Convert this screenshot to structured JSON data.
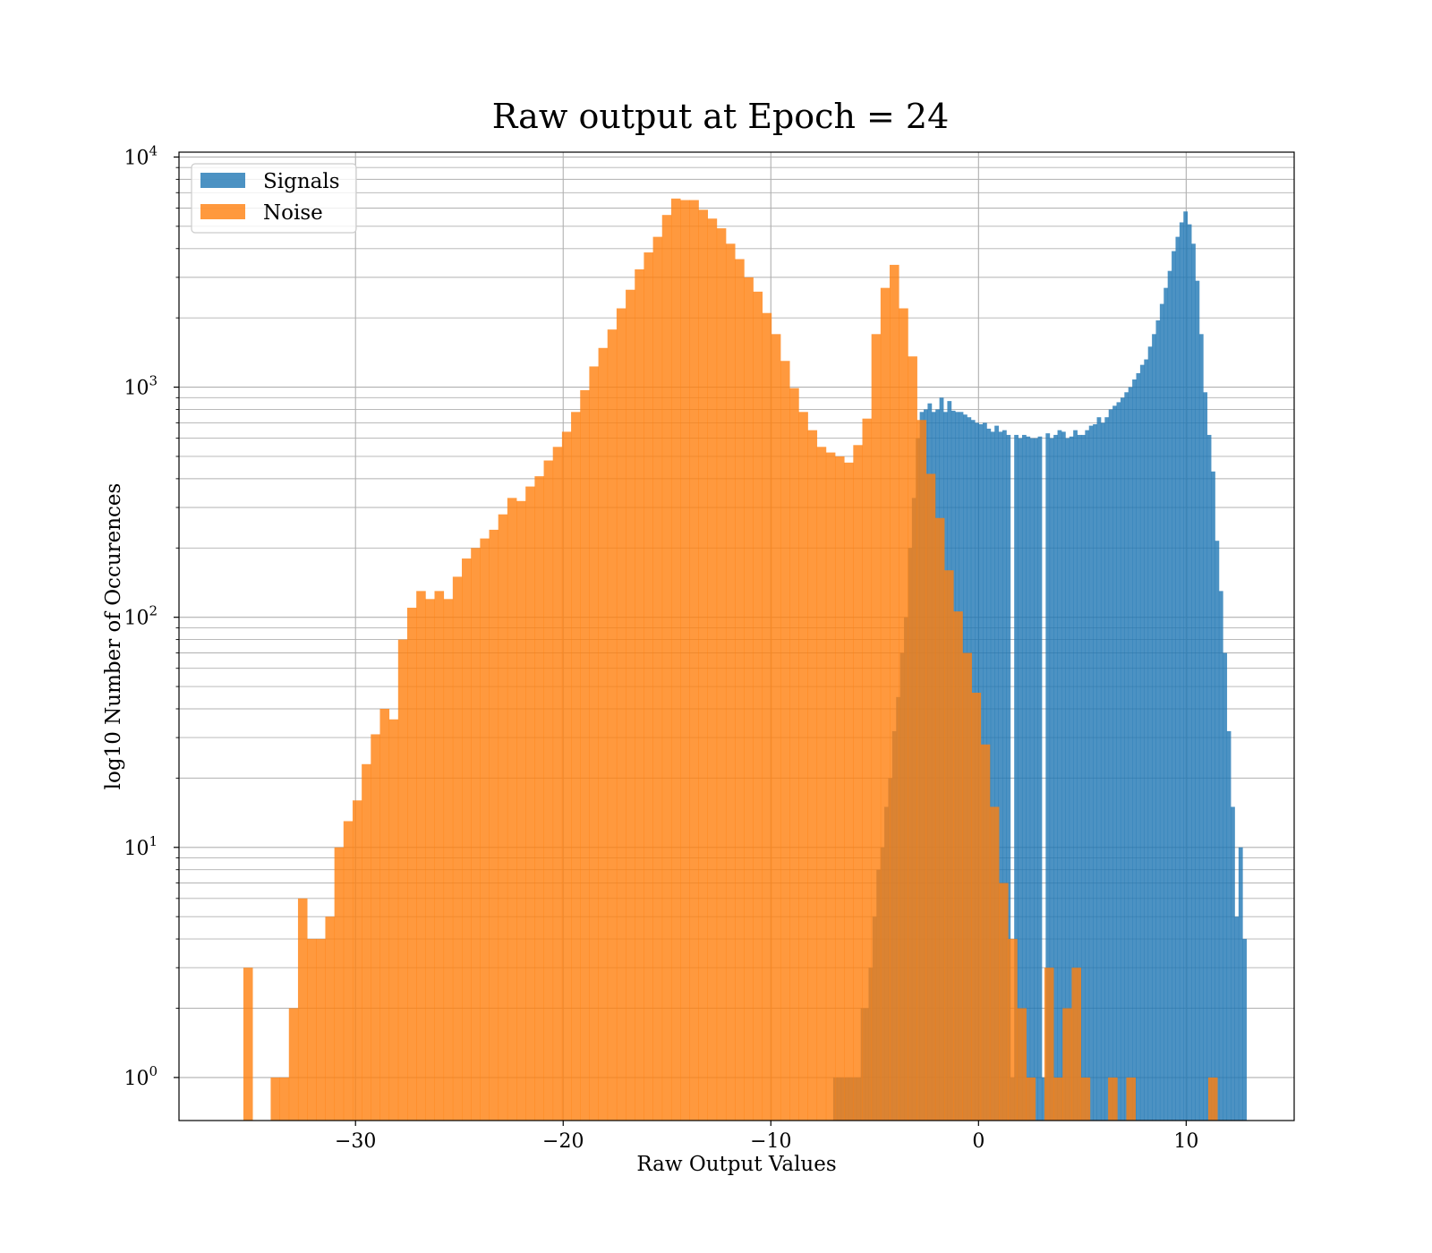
{
  "chart_data": {
    "type": "histogram",
    "title": "Raw output at Epoch = 24",
    "xlabel": "Raw Output Values",
    "ylabel": "log10 Number of Occurences",
    "yscale": "log",
    "xlim": [
      -38.5,
      15.2
    ],
    "ylim": [
      0.65,
      10500
    ],
    "x_ticks": [
      -30,
      -20,
      -10,
      0,
      10
    ],
    "x_tick_labels": [
      "−30",
      "−20",
      "−10",
      "0",
      "10"
    ],
    "y_ticks": [
      1,
      10,
      100,
      1000,
      10000
    ],
    "y_tick_base": "10",
    "y_tick_exponents": [
      "0",
      "1",
      "2",
      "3",
      "4"
    ],
    "grid": true,
    "legend_position": "upper left",
    "series": [
      {
        "name": "Signals",
        "color": "#1f77b4",
        "alpha": 0.8,
        "bin_edges": [
          -7.0,
          12.9
        ],
        "counts": [
          1,
          1,
          1,
          1,
          1,
          1,
          1,
          2,
          2,
          3,
          5,
          8,
          10,
          15,
          20,
          32,
          45,
          70,
          100,
          200,
          330,
          600,
          780,
          800,
          850,
          780,
          800,
          900,
          780,
          870,
          790,
          780,
          780,
          760,
          740,
          720,
          700,
          690,
          700,
          660,
          640,
          680,
          640,
          650,
          620,
          1,
          620,
          600,
          620,
          610,
          600,
          600,
          610,
          1,
          630,
          600,
          620,
          650,
          640,
          600,
          610,
          650,
          620,
          620,
          650,
          680,
          690,
          740,
          700,
          740,
          800,
          830,
          860,
          900,
          950,
          1000,
          1080,
          1150,
          1250,
          1320,
          1500,
          1700,
          1950,
          2300,
          2700,
          3200,
          3900,
          4500,
          5200,
          5800,
          5100,
          4200,
          2900,
          1700,
          950,
          620,
          430,
          215,
          130,
          70,
          32,
          15,
          5,
          10,
          4
        ]
      },
      {
        "name": "Noise",
        "color": "#ff7f0e",
        "alpha": 0.8,
        "bin_edges": [
          -35.4,
          11.5
        ],
        "counts": [
          3,
          0,
          0,
          1,
          1,
          2,
          6,
          4,
          4,
          5,
          10,
          13,
          16,
          23,
          31,
          40,
          36,
          80,
          110,
          130,
          120,
          130,
          120,
          150,
          180,
          200,
          220,
          240,
          280,
          330,
          320,
          370,
          410,
          480,
          550,
          640,
          780,
          970,
          1230,
          1480,
          1780,
          2200,
          2650,
          3250,
          3850,
          4500,
          5600,
          6600,
          6500,
          6500,
          5900,
          5400,
          4900,
          4200,
          3600,
          3000,
          2600,
          2100,
          1700,
          1300,
          990,
          780,
          650,
          550,
          520,
          500,
          470,
          560,
          730,
          1700,
          2700,
          3400,
          2200,
          1360,
          720,
          420,
          270,
          160,
          106,
          70,
          47,
          28,
          15,
          7,
          4,
          2,
          1,
          0,
          3,
          1,
          2,
          3,
          1,
          0,
          0,
          1,
          0,
          1,
          0,
          0,
          0,
          0,
          0,
          0,
          0,
          0,
          1
        ]
      }
    ]
  }
}
